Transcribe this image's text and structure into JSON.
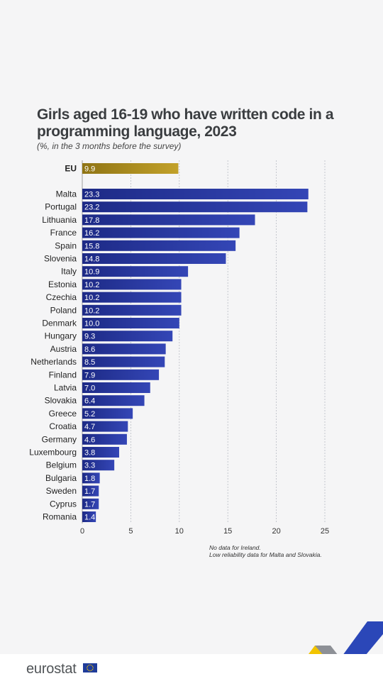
{
  "title": "Girls aged 16-19 who have written code in a programming language, 2023",
  "subtitle": "(%, in the 3 months before the survey)",
  "chart_data": {
    "type": "bar",
    "orientation": "horizontal",
    "title": "Girls aged 16-19 who have written code in a programming language, 2023",
    "subtitle": "(%, in the 3 months before the survey)",
    "xlim": [
      0,
      25
    ],
    "xticks": [
      0,
      5,
      10,
      15,
      20,
      25
    ],
    "grid": true,
    "eu": {
      "label": "EU",
      "value": 9.9,
      "value_label": "9.9"
    },
    "categories": [
      "Malta",
      "Portugal",
      "Lithuania",
      "France",
      "Spain",
      "Slovenia",
      "Italy",
      "Estonia",
      "Czechia",
      "Poland",
      "Denmark",
      "Hungary",
      "Austria",
      "Netherlands",
      "Finland",
      "Latvia",
      "Slovakia",
      "Greece",
      "Croatia",
      "Germany",
      "Luxembourg",
      "Belgium",
      "Bulgaria",
      "Sweden",
      "Cyprus",
      "Romania"
    ],
    "values": [
      23.3,
      23.2,
      17.8,
      16.2,
      15.8,
      14.8,
      10.9,
      10.2,
      10.2,
      10.2,
      10.0,
      9.3,
      8.6,
      8.5,
      7.9,
      7.0,
      6.4,
      5.2,
      4.7,
      4.6,
      3.8,
      3.3,
      1.8,
      1.7,
      1.7,
      1.4
    ],
    "value_labels": [
      "23.3",
      "23.2",
      "17.8",
      "16.2",
      "15.8",
      "14.8",
      "10.9",
      "10.2",
      "10.2",
      "10.2",
      "10.0",
      "9.3",
      "8.6",
      "8.5",
      "7.9",
      "7.0",
      "6.4",
      "5.2",
      "4.7",
      "4.6",
      "3.8",
      "3.3",
      "1.8",
      "1.7",
      "1.7",
      "1.4"
    ],
    "colors": {
      "eu_bar": "#a88a1f",
      "country_bar": "#2a3aa0"
    }
  },
  "footnotes": [
    "No data for Ireland.",
    "Low reliability data for Malta and Slovakia."
  ],
  "footer": {
    "logo_text": "eurostat"
  },
  "colors": {
    "background": "#f5f5f6",
    "footer": "#ffffff",
    "accent_yellow": "#f2c400",
    "accent_blue": "#2b47b8"
  }
}
